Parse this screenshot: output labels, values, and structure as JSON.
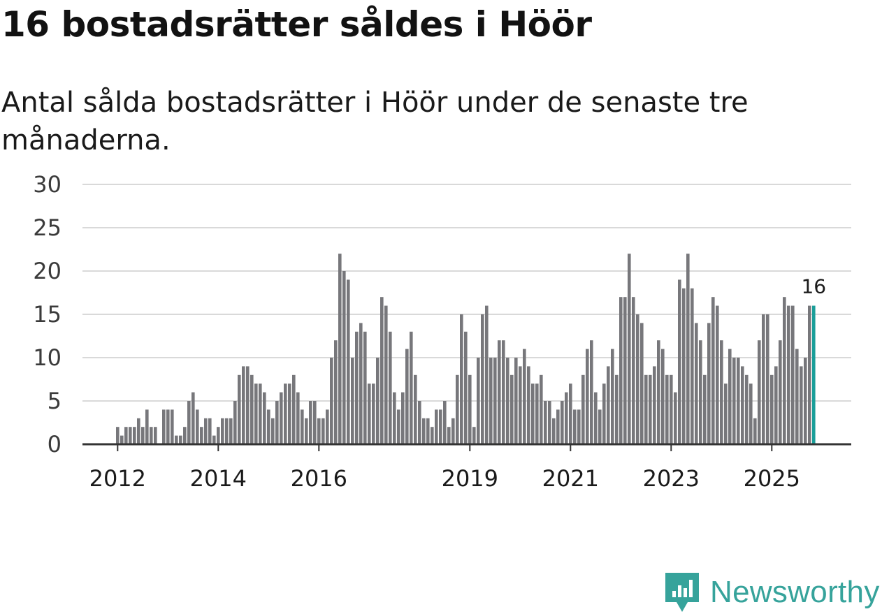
{
  "header": {
    "title": "16 bostadsrätter såldes i Höör",
    "subtitle": "Antal sålda bostadsrätter i Höör under de senaste tre månaderna."
  },
  "brand": {
    "name": "Newsworthy",
    "color": "#36a39b",
    "icon": "newsworthy-logo-icon"
  },
  "colors": {
    "bar": "#77777b",
    "highlight": "#1a9e99",
    "grid": "#d9d9d9",
    "axis": "#333333"
  },
  "chart_data": {
    "type": "bar",
    "title": "16 bostadsrätter såldes i Höör",
    "subtitle": "Antal sålda bostadsrätter i Höör under de senaste tre månaderna.",
    "xlabel": "",
    "ylabel": "",
    "ylim": [
      0,
      30
    ],
    "y_ticks": [
      0,
      5,
      10,
      15,
      20,
      25,
      30
    ],
    "x_tick_labels": [
      "2012",
      "2014",
      "2016",
      "2019",
      "2021",
      "2023",
      "2025"
    ],
    "grid": true,
    "start": "2011-01",
    "highlight_last": true,
    "last_label": "16",
    "values": [
      0,
      0,
      0,
      0,
      0,
      0,
      0,
      0,
      0,
      0,
      0,
      0,
      2,
      1,
      2,
      2,
      2,
      3,
      2,
      4,
      2,
      2,
      0,
      4,
      4,
      4,
      1,
      1,
      2,
      5,
      6,
      4,
      2,
      3,
      3,
      1,
      2,
      3,
      3,
      3,
      5,
      8,
      9,
      9,
      8,
      7,
      7,
      6,
      4,
      3,
      5,
      6,
      7,
      7,
      8,
      6,
      4,
      3,
      5,
      5,
      3,
      3,
      4,
      10,
      12,
      22,
      20,
      19,
      10,
      13,
      14,
      13,
      7,
      7,
      10,
      17,
      16,
      13,
      6,
      4,
      6,
      11,
      13,
      8,
      5,
      3,
      3,
      2,
      4,
      4,
      5,
      2,
      3,
      8,
      15,
      13,
      8,
      2,
      10,
      15,
      16,
      10,
      10,
      12,
      12,
      10,
      8,
      10,
      9,
      11,
      9,
      7,
      7,
      8,
      5,
      5,
      3,
      4,
      5,
      6,
      7,
      4,
      4,
      8,
      11,
      12,
      6,
      4,
      7,
      9,
      11,
      8,
      17,
      17,
      22,
      17,
      15,
      14,
      8,
      8,
      9,
      12,
      11,
      8,
      8,
      6,
      19,
      18,
      22,
      18,
      14,
      12,
      8,
      14,
      17,
      16,
      12,
      7,
      11,
      10,
      10,
      9,
      8,
      7,
      3,
      12,
      15,
      15,
      8,
      9,
      12,
      17,
      16,
      16,
      11,
      9,
      10,
      16,
      16
    ]
  }
}
